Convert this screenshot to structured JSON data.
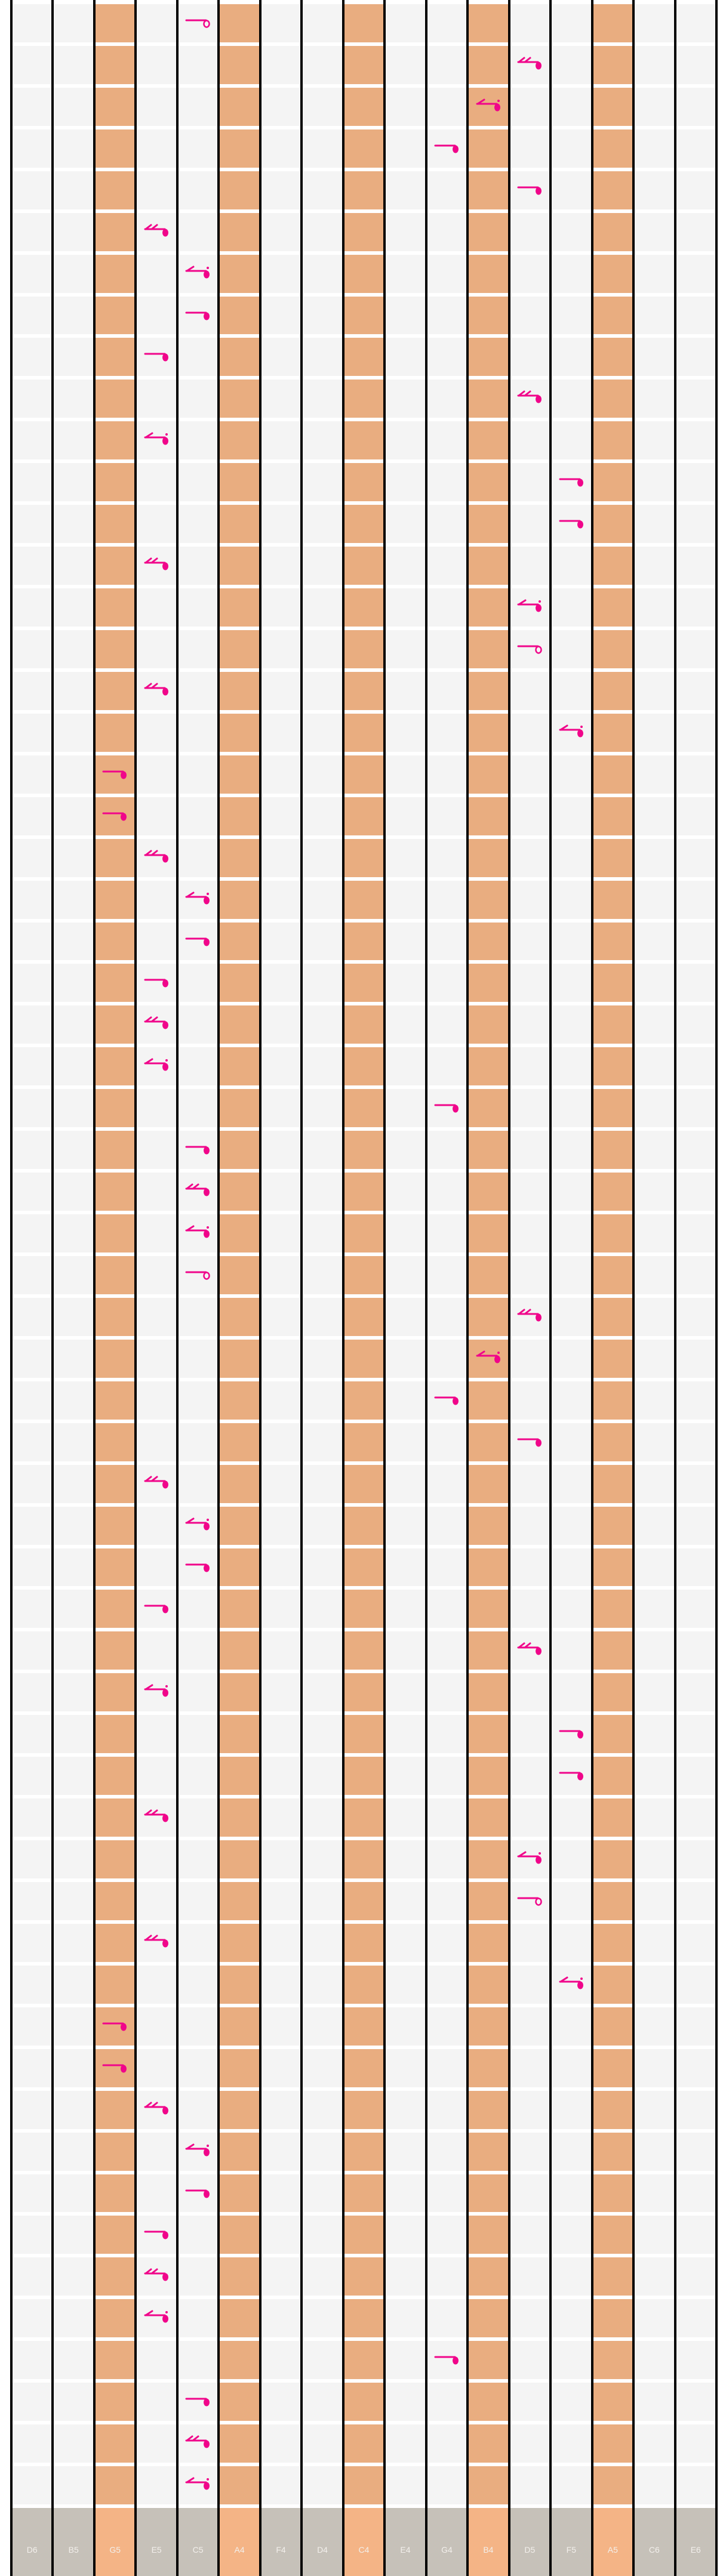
{
  "colors": {
    "background": "#f4f4f4",
    "highlight": "#e9ad80",
    "footer": "#c6c1b9",
    "footer_highlight": "#f4b486",
    "note": "#f0058a",
    "line": "#000000"
  },
  "tines": [
    {
      "label": "D6",
      "highlight": false
    },
    {
      "label": "B5",
      "highlight": false
    },
    {
      "label": "G5",
      "highlight": true
    },
    {
      "label": "E5",
      "highlight": false
    },
    {
      "label": "C5",
      "highlight": false
    },
    {
      "label": "A4",
      "highlight": true
    },
    {
      "label": "F4",
      "highlight": false
    },
    {
      "label": "D4",
      "highlight": false
    },
    {
      "label": "C4",
      "highlight": true
    },
    {
      "label": "E4",
      "highlight": false
    },
    {
      "label": "G4",
      "highlight": false
    },
    {
      "label": "B4",
      "highlight": true
    },
    {
      "label": "D5",
      "highlight": false
    },
    {
      "label": "F5",
      "highlight": false
    },
    {
      "label": "A5",
      "highlight": true
    },
    {
      "label": "C6",
      "highlight": false
    },
    {
      "label": "E6",
      "highlight": false
    }
  ],
  "notes": [
    {
      "tine": "C5",
      "type": "half"
    },
    {
      "tine": "D5",
      "type": "sixteenth"
    },
    {
      "tine": "B4",
      "type": "dotted-eighth"
    },
    {
      "tine": "G4",
      "type": "quarter"
    },
    {
      "tine": "D5",
      "type": "quarter"
    },
    {
      "tine": "E5",
      "type": "sixteenth"
    },
    {
      "tine": "C5",
      "type": "dotted-eighth"
    },
    {
      "tine": "C5",
      "type": "quarter"
    },
    {
      "tine": "E5",
      "type": "quarter"
    },
    {
      "tine": "D5",
      "type": "sixteenth"
    },
    {
      "tine": "E5",
      "type": "dotted-eighth"
    },
    {
      "tine": "F5",
      "type": "quarter"
    },
    {
      "tine": "F5",
      "type": "quarter"
    },
    {
      "tine": "E5",
      "type": "sixteenth"
    },
    {
      "tine": "D5",
      "type": "dotted-eighth"
    },
    {
      "tine": "D5",
      "type": "half"
    },
    {
      "tine": "E5",
      "type": "sixteenth"
    },
    {
      "tine": "F5",
      "type": "dotted-eighth"
    },
    {
      "tine": "G5",
      "type": "quarter"
    },
    {
      "tine": "G5",
      "type": "quarter"
    },
    {
      "tine": "E5",
      "type": "sixteenth"
    },
    {
      "tine": "C5",
      "type": "dotted-eighth"
    },
    {
      "tine": "C5",
      "type": "quarter"
    },
    {
      "tine": "E5",
      "type": "quarter"
    },
    {
      "tine": "E5",
      "type": "sixteenth"
    },
    {
      "tine": "E5",
      "type": "dotted-eighth"
    },
    {
      "tine": "G4",
      "type": "quarter"
    },
    {
      "tine": "C5",
      "type": "quarter"
    },
    {
      "tine": "C5",
      "type": "sixteenth"
    },
    {
      "tine": "C5",
      "type": "dotted-eighth"
    },
    {
      "tine": "C5",
      "type": "half"
    },
    {
      "tine": "D5",
      "type": "sixteenth"
    },
    {
      "tine": "B4",
      "type": "dotted-eighth"
    },
    {
      "tine": "G4",
      "type": "quarter"
    },
    {
      "tine": "D5",
      "type": "quarter"
    },
    {
      "tine": "E5",
      "type": "sixteenth"
    },
    {
      "tine": "C5",
      "type": "dotted-eighth"
    },
    {
      "tine": "C5",
      "type": "quarter"
    },
    {
      "tine": "E5",
      "type": "quarter"
    },
    {
      "tine": "D5",
      "type": "sixteenth"
    },
    {
      "tine": "E5",
      "type": "dotted-eighth"
    },
    {
      "tine": "F5",
      "type": "quarter"
    },
    {
      "tine": "F5",
      "type": "quarter"
    },
    {
      "tine": "E5",
      "type": "sixteenth"
    },
    {
      "tine": "D5",
      "type": "dotted-eighth"
    },
    {
      "tine": "D5",
      "type": "half"
    },
    {
      "tine": "E5",
      "type": "sixteenth"
    },
    {
      "tine": "F5",
      "type": "dotted-eighth"
    },
    {
      "tine": "G5",
      "type": "quarter"
    },
    {
      "tine": "G5",
      "type": "quarter"
    },
    {
      "tine": "E5",
      "type": "sixteenth"
    },
    {
      "tine": "C5",
      "type": "dotted-eighth"
    },
    {
      "tine": "C5",
      "type": "quarter"
    },
    {
      "tine": "E5",
      "type": "quarter"
    },
    {
      "tine": "E5",
      "type": "sixteenth"
    },
    {
      "tine": "E5",
      "type": "dotted-eighth"
    },
    {
      "tine": "G4",
      "type": "quarter"
    },
    {
      "tine": "C5",
      "type": "quarter"
    },
    {
      "tine": "C5",
      "type": "sixteenth"
    },
    {
      "tine": "C5",
      "type": "dotted-eighth"
    }
  ]
}
